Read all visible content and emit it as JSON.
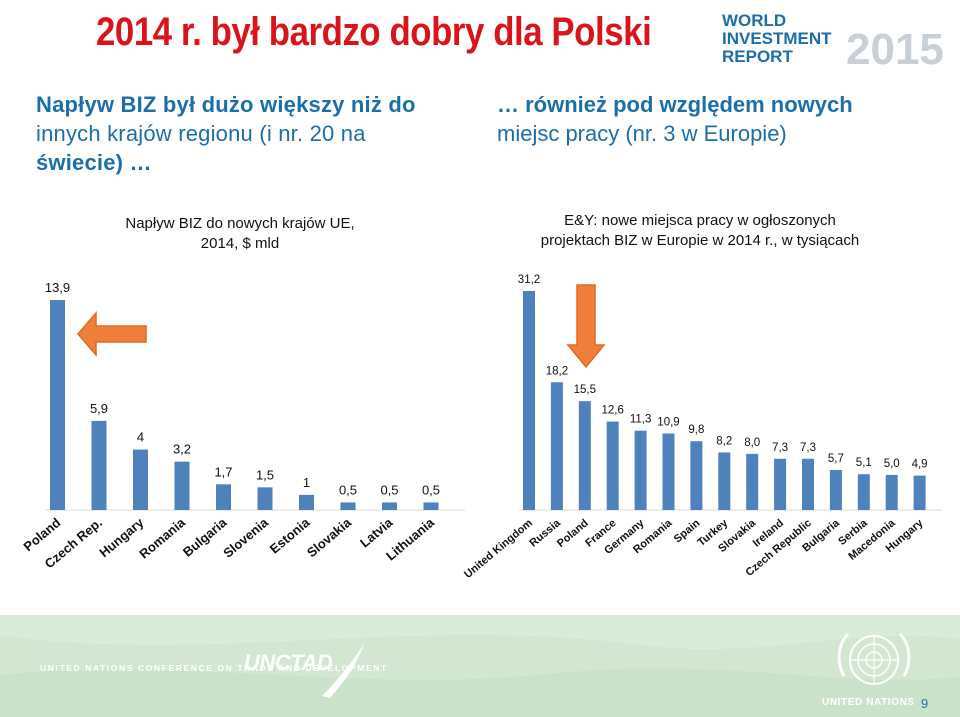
{
  "header": {
    "title": "2014 r. był bardzo dobry dla Polski",
    "logo_text": [
      "WORLD",
      "INVESTMENT",
      "REPORT",
      "2015"
    ]
  },
  "left_heading": {
    "line1": "Napływ BIZ był dużo większy niż do",
    "line2": "innych krajów regionu (i nr. 20 na",
    "line3": "świecie) …"
  },
  "right_heading": {
    "line1": "… również pod względem nowych",
    "line2": "miejsc pracy (nr. 3 w Europie)"
  },
  "colors": {
    "bar": "#4f81bd",
    "title": "#d9141b",
    "heading": "#1b6fa8",
    "arrow": "#ef7f3b",
    "footer": "#d9ebd9"
  },
  "footer": {
    "unctad_line": "UNITED NATIONS CONFERENCE ON TRADE AND DEVELOPMENT",
    "unctad_logo": "UNCTAD",
    "un_label": "UNITED NATIONS",
    "page_number": "9"
  },
  "chart_data": [
    {
      "type": "bar",
      "title": "Napływ BIZ do nowych krajów UE, 2014, $ mld",
      "title_lines": [
        "Napływ BIZ do nowych krajów UE,",
        "2014, $ mld"
      ],
      "categories": [
        "Poland",
        "Czech Rep.",
        "Hungary",
        "Romania",
        "Bulgaria",
        "Slovenia",
        "Estonia",
        "Slovakia",
        "Latvia",
        "Lithuania"
      ],
      "values": [
        13.9,
        5.9,
        4,
        3.2,
        1.7,
        1.5,
        1,
        0.5,
        0.5,
        0.5
      ],
      "value_labels": [
        "13,9",
        "5,9",
        "4",
        "3,2",
        "1,7",
        "1,5",
        "1",
        "0,5",
        "0,5",
        "0,5"
      ],
      "highlight": "Poland"
    },
    {
      "type": "bar",
      "title": "E&Y: nowe miejsca pracy w ogłoszonych projektach BIZ w Europie w 2014 r., w tysiącach",
      "title_lines": [
        "E&Y: nowe miejsca pracy w ogłoszonych",
        "projektach BIZ w Europie w 2014 r., w tysiącach"
      ],
      "categories": [
        "United Kingdom",
        "Russia",
        "Poland",
        "France",
        "Germany",
        "Romania",
        "Spain",
        "Turkey",
        "Slovakia",
        "Ireland",
        "Czech Republic",
        "Bulgaria",
        "Serbia",
        "Macedonia",
        "Hungary"
      ],
      "values": [
        31.2,
        18.2,
        15.5,
        12.6,
        11.3,
        10.9,
        9.8,
        8.2,
        8.0,
        7.3,
        7.3,
        5.7,
        5.1,
        5.0,
        4.9
      ],
      "value_labels": [
        "31,2",
        "18,2",
        "15,5",
        "12,6",
        "11,3",
        "10,9",
        "9,8",
        "8,2",
        "8,0",
        "7,3",
        "7,3",
        "5,7",
        "5,1",
        "5,0",
        "4,9"
      ],
      "highlight": "Poland"
    }
  ]
}
